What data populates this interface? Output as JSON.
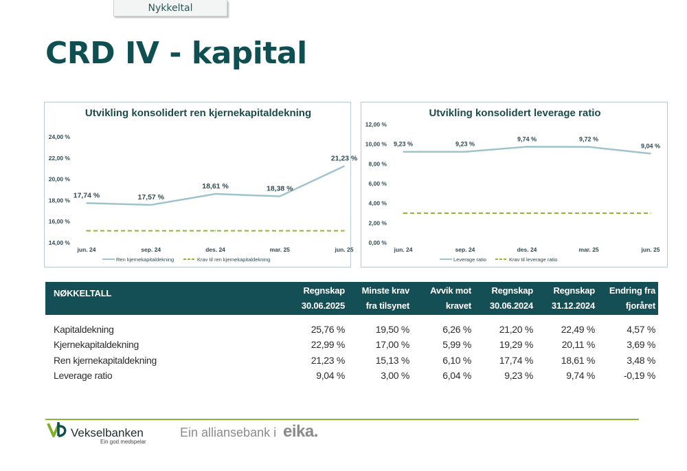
{
  "header": {
    "tab_label": "Nykkeltal",
    "title": "CRD IV - kapital"
  },
  "chart_data": [
    {
      "type": "line",
      "title": "Utvikling konsolidert ren kjernekapitaldekning",
      "categories": [
        "jun. 24",
        "sep. 24",
        "des. 24",
        "mar. 25",
        "jun. 25"
      ],
      "y_ticks": [
        "14,00 %",
        "16,00 %",
        "18,00 %",
        "20,00 %",
        "22,00 %",
        "24,00 %"
      ],
      "ylim": [
        14,
        24
      ],
      "series": [
        {
          "name": "Ren kjernekapitaldekning",
          "values": [
            17.74,
            17.57,
            18.61,
            18.38,
            21.23
          ],
          "labels": [
            "17,74 %",
            "17,57 %",
            "18,61 %",
            "18,38 %",
            "21,23 %"
          ],
          "color": "#9fc3cc",
          "style": "solid"
        },
        {
          "name": "Krav til ren kjernekapitaldekning",
          "values": [
            15.13,
            15.13,
            15.13,
            15.13,
            15.13
          ],
          "color": "#8ab92d",
          "style": "dashed"
        }
      ],
      "grid": false,
      "legend": "bottom"
    },
    {
      "type": "line",
      "title": "Utvikling konsolidert leverage ratio",
      "categories": [
        "jun. 24",
        "sep. 24",
        "des. 24",
        "mar. 25",
        "jun. 25"
      ],
      "y_ticks": [
        "0,00 %",
        "2,00 %",
        "4,00 %",
        "6,00 %",
        "8,00 %",
        "10,00 %",
        "12,00 %"
      ],
      "ylim": [
        0,
        12
      ],
      "series": [
        {
          "name": "Leverage ratio",
          "values": [
            9.23,
            9.23,
            9.74,
            9.72,
            9.04
          ],
          "labels": [
            "9,23 %",
            "9,23 %",
            "9,74 %",
            "9,72 %",
            "9,04 %"
          ],
          "color": "#9fc3cc",
          "style": "solid"
        },
        {
          "name": "Krav til leverage ratio",
          "values": [
            3.0,
            3.0,
            3.0,
            3.0,
            3.0
          ],
          "color": "#8ab92d",
          "style": "dashed"
        }
      ],
      "grid": false,
      "legend": "bottom"
    }
  ],
  "table": {
    "headers": [
      {
        "line1": "NØKKELTALL",
        "line2": ""
      },
      {
        "line1": "Regnskap",
        "line2": "30.06.2025"
      },
      {
        "line1": "Minste krav",
        "line2": "fra tilsynet"
      },
      {
        "line1": "Avvik mot",
        "line2": "kravet"
      },
      {
        "line1": "Regnskap",
        "line2": "30.06.2024"
      },
      {
        "line1": "Regnskap",
        "line2": "31.12.2024"
      },
      {
        "line1": "Endring fra",
        "line2": "fjoråret"
      }
    ],
    "rows": [
      [
        "Kapitaldekning",
        "25,76 %",
        "19,50 %",
        "6,26 %",
        "21,20 %",
        "22,49 %",
        "4,57 %"
      ],
      [
        "Kjernekapitaldekning",
        "22,99 %",
        "17,00 %",
        "5,99 %",
        "19,29 %",
        "20,11 %",
        "3,69 %"
      ],
      [
        "Ren kjernekapitaldekning",
        "21,23 %",
        "15,13 %",
        "6,10 %",
        "17,74 %",
        "18,61 %",
        "3,48 %"
      ],
      [
        "Leverage ratio",
        "9,04 %",
        "3,00 %",
        "6,04 %",
        "9,23 %",
        "9,74 %",
        "-0,19 %"
      ]
    ]
  },
  "footer": {
    "bank_name": "Vekselbanken",
    "bank_tagline": "Ein god medspelar",
    "alliance_text": "Ein alliansebank i",
    "alliance_brand": "eika."
  },
  "colors": {
    "brand_teal": "#154f56",
    "title_teal": "#0f4f52",
    "accent_green": "#8ab92d",
    "series_blue": "#9fc3cc"
  }
}
